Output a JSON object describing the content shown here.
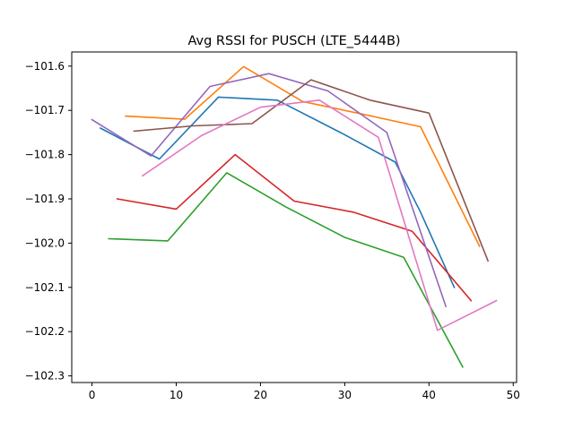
{
  "chart_data": {
    "type": "line",
    "title": "Avg RSSI for PUSCH (LTE_5444B)",
    "xlabel": "",
    "ylabel": "",
    "xlim": [
      -2.4,
      50.4
    ],
    "ylim": [
      -102.315,
      -101.568
    ],
    "xticks": [
      0,
      10,
      20,
      30,
      40,
      50
    ],
    "yticks": [
      -102.3,
      -102.2,
      -102.1,
      -102.0,
      -101.9,
      -101.8,
      -101.7,
      -101.6
    ],
    "ytick_labels": [
      "−102.3",
      "−102.2",
      "−102.1",
      "−102.0",
      "−101.9",
      "−101.8",
      "−101.7",
      "−101.6"
    ],
    "grid": false,
    "legend": "none",
    "series": [
      {
        "color": "#1f77b4",
        "x": [
          1,
          8,
          15,
          22,
          30,
          36,
          39,
          43
        ],
        "y": [
          -101.74,
          -101.81,
          -101.67,
          -101.677,
          -101.755,
          -101.817,
          -101.93,
          -102.1
        ]
      },
      {
        "color": "#ff7f0e",
        "x": [
          4,
          11,
          18,
          25,
          32,
          39,
          46
        ],
        "y": [
          -101.713,
          -101.72,
          -101.601,
          -101.68,
          -101.708,
          -101.737,
          -102.007
        ]
      },
      {
        "color": "#2ca02c",
        "x": [
          2,
          9,
          16,
          23,
          30,
          37,
          44
        ],
        "y": [
          -101.99,
          -101.995,
          -101.841,
          -101.918,
          -101.987,
          -102.032,
          -102.28
        ]
      },
      {
        "color": "#d62728",
        "x": [
          3,
          10,
          17,
          24,
          31,
          38,
          45
        ],
        "y": [
          -101.9,
          -101.923,
          -101.8,
          -101.905,
          -101.93,
          -101.973,
          -102.13
        ]
      },
      {
        "color": "#9467bd",
        "x": [
          0,
          7,
          14,
          21,
          28,
          35,
          42
        ],
        "y": [
          -101.721,
          -101.803,
          -101.646,
          -101.617,
          -101.656,
          -101.75,
          -102.143
        ]
      },
      {
        "color": "#8c564b",
        "x": [
          5,
          12,
          19,
          26,
          33,
          40,
          47
        ],
        "y": [
          -101.747,
          -101.735,
          -101.73,
          -101.631,
          -101.677,
          -101.706,
          -102.04
        ]
      },
      {
        "color": "#e377c2",
        "x": [
          6,
          13,
          20,
          27,
          34,
          41,
          48
        ],
        "y": [
          -101.848,
          -101.757,
          -101.693,
          -101.677,
          -101.761,
          -102.197,
          -102.13
        ]
      }
    ]
  }
}
